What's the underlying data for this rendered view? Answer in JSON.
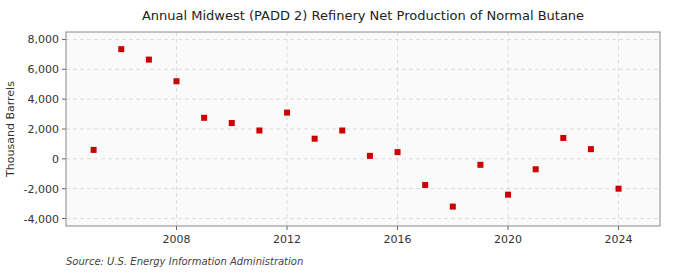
{
  "chart_data": {
    "type": "scatter",
    "title": "Annual Midwest (PADD 2) Refinery Net Production of Normal Butane",
    "y_label": "Thousand Barrels",
    "annotations": [
      "Source: U.S. Energy Information Administration"
    ],
    "x": [
      2005,
      2006,
      2007,
      2008,
      2009,
      2010,
      2011,
      2012,
      2013,
      2014,
      2015,
      2016,
      2017,
      2018,
      2019,
      2020,
      2021,
      2022,
      2023,
      2024
    ],
    "values": [
      600,
      7350,
      6650,
      5200,
      2750,
      2400,
      1900,
      3100,
      1350,
      1900,
      200,
      450,
      -1750,
      -3200,
      -400,
      -2400,
      -700,
      1400,
      650,
      -2000
    ],
    "color": "#cc0000",
    "marker": "square",
    "xlim": [
      2004.0,
      2025.5
    ],
    "xticks": [
      2008,
      2012,
      2016,
      2020,
      2024
    ],
    "ylim": [
      -4500,
      8500
    ],
    "yticks": [
      {
        "value": -4000,
        "label": "-4,000"
      },
      {
        "value": -2000,
        "label": "-2,000"
      },
      0,
      {
        "value": 2000,
        "label": "2,000"
      },
      {
        "value": 4000,
        "label": "4,000"
      },
      {
        "value": 6000,
        "label": "6,000"
      },
      {
        "value": 8000,
        "label": "8,000"
      }
    ],
    "grid": true
  }
}
